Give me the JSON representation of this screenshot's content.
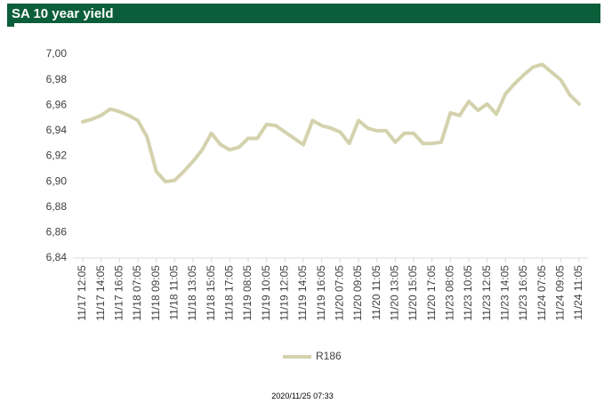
{
  "chart_data": {
    "type": "line",
    "title": "SA 10 year yield",
    "categories": [
      "11/17 12:05",
      null,
      "11/17 14:05",
      null,
      "11/17 16:05",
      null,
      "11/18 07:05",
      null,
      "11/18 09:05",
      null,
      "11/18 11:05",
      null,
      "11/18 13:05",
      null,
      "11/18 15:05",
      null,
      "11/18 17:05",
      null,
      "11/19 08:05",
      null,
      "11/19 10:05",
      null,
      "11/19 12:05",
      null,
      "11/19 14:05",
      null,
      "11/19 16:05",
      null,
      "11/20 07:05",
      null,
      "11/20 09:05",
      null,
      "11/20 11:05",
      null,
      "11/20 13:05",
      null,
      "11/20 15:05",
      null,
      "11/20 17:05",
      null,
      "11/23 08:05",
      null,
      "11/23 10:05",
      null,
      "11/23 12:05",
      null,
      "11/23 14:05",
      null,
      "11/23 16:05",
      null,
      "11/24 07:05",
      null,
      "11/24 09:05",
      null,
      "11/24 11:05"
    ],
    "series": [
      {
        "name": "R186",
        "color": "#d4d2ad",
        "values": [
          6.947,
          6.949,
          6.952,
          6.957,
          6.955,
          6.952,
          6.948,
          6.935,
          6.908,
          6.9,
          6.901,
          6.908,
          6.916,
          6.925,
          6.938,
          6.929,
          6.925,
          6.927,
          6.934,
          6.934,
          6.945,
          6.944,
          6.939,
          6.934,
          6.929,
          6.948,
          6.944,
          6.942,
          6.939,
          6.93,
          6.948,
          6.942,
          6.94,
          6.94,
          6.931,
          6.938,
          6.938,
          6.93,
          6.93,
          6.931,
          6.954,
          6.952,
          6.963,
          6.956,
          6.961,
          6.953,
          6.969,
          6.977,
          6.984,
          6.99,
          6.992,
          6.986,
          6.98,
          6.968,
          6.961
        ]
      }
    ],
    "ylim": [
      6.84,
      7.0
    ],
    "yticks": [
      {
        "value": 6.84,
        "label": "6,84"
      },
      {
        "value": 6.86,
        "label": "6,86"
      },
      {
        "value": 6.88,
        "label": "6,88"
      },
      {
        "value": 6.9,
        "label": "6,90"
      },
      {
        "value": 6.92,
        "label": "6,92"
      },
      {
        "value": 6.94,
        "label": "6,94"
      },
      {
        "value": 6.96,
        "label": "6,96"
      },
      {
        "value": 6.98,
        "label": "6,98"
      },
      {
        "value": 7.0,
        "label": "7,00"
      }
    ],
    "footer": "2020/11/25 07:33"
  }
}
